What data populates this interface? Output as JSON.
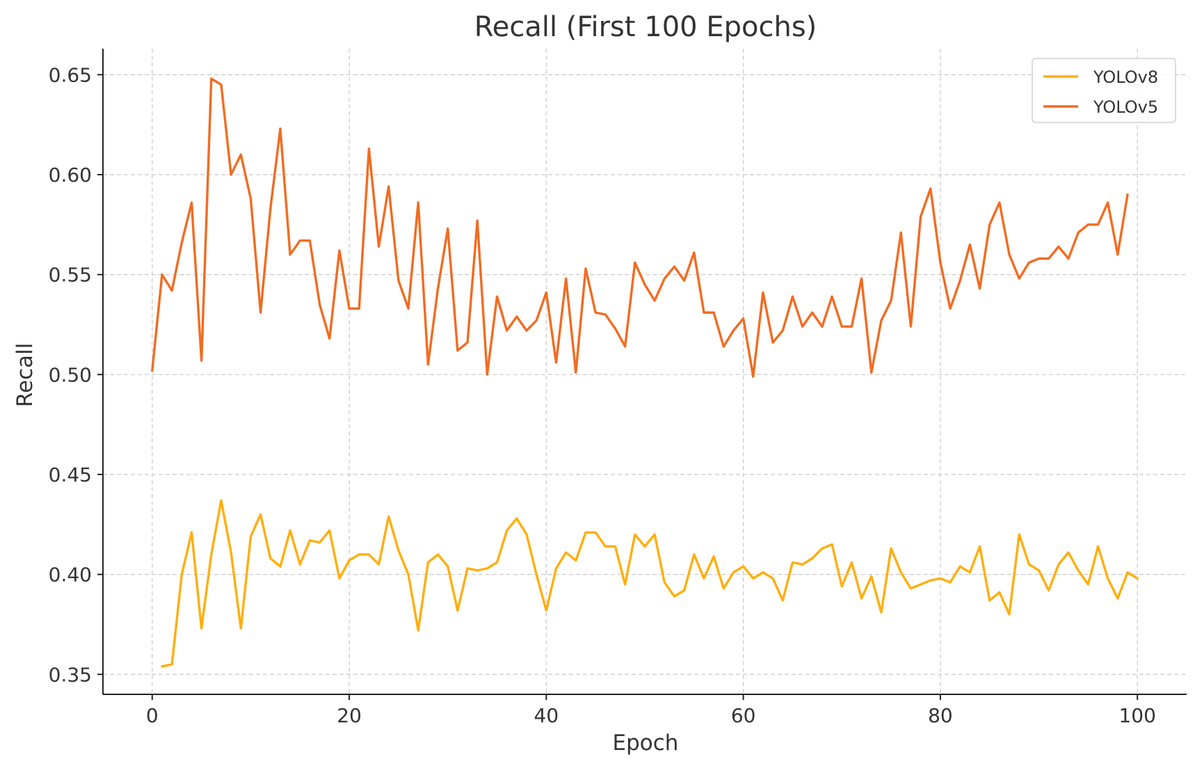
{
  "chart_data": {
    "type": "line",
    "title": "Recall (First 100 Epochs)",
    "xlabel": "Epoch",
    "ylabel": "Recall",
    "xlim": [
      -5,
      105
    ],
    "ylim": [
      0.34,
      0.663
    ],
    "xticks": [
      0,
      20,
      40,
      60,
      80,
      100
    ],
    "yticks": [
      0.35,
      0.4,
      0.45,
      0.5,
      0.55,
      0.6,
      0.65
    ],
    "xtick_labels": [
      "0",
      "20",
      "40",
      "60",
      "80",
      "100"
    ],
    "ytick_labels": [
      "0.35",
      "0.40",
      "0.45",
      "0.50",
      "0.55",
      "0.60",
      "0.65"
    ],
    "grid": true,
    "legend_position": "top-right",
    "series": [
      {
        "name": "YOLOv8",
        "color": "#FFAE0E",
        "x": [
          1,
          2,
          3,
          4,
          5,
          6,
          7,
          8,
          9,
          10,
          11,
          12,
          13,
          14,
          15,
          16,
          17,
          18,
          19,
          20,
          21,
          22,
          23,
          24,
          25,
          26,
          27,
          28,
          29,
          30,
          31,
          32,
          33,
          34,
          35,
          36,
          37,
          38,
          39,
          40,
          41,
          42,
          43,
          44,
          45,
          46,
          47,
          48,
          49,
          50,
          51,
          52,
          53,
          54,
          55,
          56,
          57,
          58,
          59,
          60,
          61,
          62,
          63,
          64,
          65,
          66,
          67,
          68,
          69,
          70,
          71,
          72,
          73,
          74,
          75,
          76,
          77,
          78,
          79,
          80,
          81,
          82,
          83,
          84,
          85,
          86,
          87,
          88,
          89,
          90,
          91,
          92,
          93,
          94,
          95,
          96,
          97,
          98,
          99,
          100
        ],
        "values": [
          0.354,
          0.355,
          0.4,
          0.421,
          0.373,
          0.41,
          0.437,
          0.411,
          0.373,
          0.419,
          0.43,
          0.408,
          0.404,
          0.422,
          0.405,
          0.417,
          0.416,
          0.422,
          0.398,
          0.407,
          0.41,
          0.41,
          0.405,
          0.429,
          0.412,
          0.4,
          0.372,
          0.406,
          0.41,
          0.404,
          0.382,
          0.403,
          0.402,
          0.403,
          0.406,
          0.422,
          0.428,
          0.42,
          0.4,
          0.382,
          0.403,
          0.411,
          0.407,
          0.421,
          0.421,
          0.414,
          0.414,
          0.395,
          0.42,
          0.414,
          0.42,
          0.396,
          0.389,
          0.392,
          0.41,
          0.398,
          0.409,
          0.393,
          0.401,
          0.404,
          0.398,
          0.401,
          0.398,
          0.387,
          0.406,
          0.405,
          0.408,
          0.413,
          0.415,
          0.394,
          0.406,
          0.388,
          0.399,
          0.381,
          0.413,
          0.401,
          0.393,
          0.395,
          0.397,
          0.398,
          0.396,
          0.404,
          0.401,
          0.414,
          0.387,
          0.391,
          0.38,
          0.42,
          0.405,
          0.402,
          0.392,
          0.405,
          0.411,
          0.402,
          0.395,
          0.414,
          0.398,
          0.388,
          0.401,
          0.398
        ]
      },
      {
        "name": "YOLOv5",
        "color": "#F26B21",
        "x": [
          0,
          1,
          2,
          3,
          4,
          5,
          6,
          7,
          8,
          9,
          10,
          11,
          12,
          13,
          14,
          15,
          16,
          17,
          18,
          19,
          20,
          21,
          22,
          23,
          24,
          25,
          26,
          27,
          28,
          29,
          30,
          31,
          32,
          33,
          34,
          35,
          36,
          37,
          38,
          39,
          40,
          41,
          42,
          43,
          44,
          45,
          46,
          47,
          48,
          49,
          50,
          51,
          52,
          53,
          54,
          55,
          56,
          57,
          58,
          59,
          60,
          61,
          62,
          63,
          64,
          65,
          66,
          67,
          68,
          69,
          70,
          71,
          72,
          73,
          74,
          75,
          76,
          77,
          78,
          79,
          80,
          81,
          82,
          83,
          84,
          85,
          86,
          87,
          88,
          89,
          90,
          91,
          92,
          93,
          94,
          95,
          96,
          97,
          98,
          99
        ],
        "values": [
          0.502,
          0.55,
          0.542,
          0.566,
          0.586,
          0.507,
          0.648,
          0.645,
          0.6,
          0.61,
          0.588,
          0.531,
          0.583,
          0.623,
          0.56,
          0.567,
          0.567,
          0.535,
          0.518,
          0.562,
          0.533,
          0.533,
          0.613,
          0.564,
          0.594,
          0.547,
          0.533,
          0.586,
          0.505,
          0.543,
          0.573,
          0.512,
          0.516,
          0.577,
          0.5,
          0.539,
          0.522,
          0.529,
          0.522,
          0.527,
          0.541,
          0.506,
          0.548,
          0.501,
          0.553,
          0.531,
          0.53,
          0.523,
          0.514,
          0.556,
          0.545,
          0.537,
          0.548,
          0.554,
          0.547,
          0.561,
          0.531,
          0.531,
          0.514,
          0.522,
          0.528,
          0.499,
          0.541,
          0.516,
          0.522,
          0.539,
          0.524,
          0.531,
          0.524,
          0.539,
          0.524,
          0.524,
          0.548,
          0.501,
          0.527,
          0.537,
          0.571,
          0.524,
          0.579,
          0.593,
          0.556,
          0.533,
          0.547,
          0.565,
          0.543,
          0.575,
          0.586,
          0.56,
          0.548,
          0.556,
          0.558,
          0.558,
          0.564,
          0.558,
          0.571,
          0.575,
          0.575,
          0.586,
          0.56,
          0.59
        ]
      }
    ]
  }
}
